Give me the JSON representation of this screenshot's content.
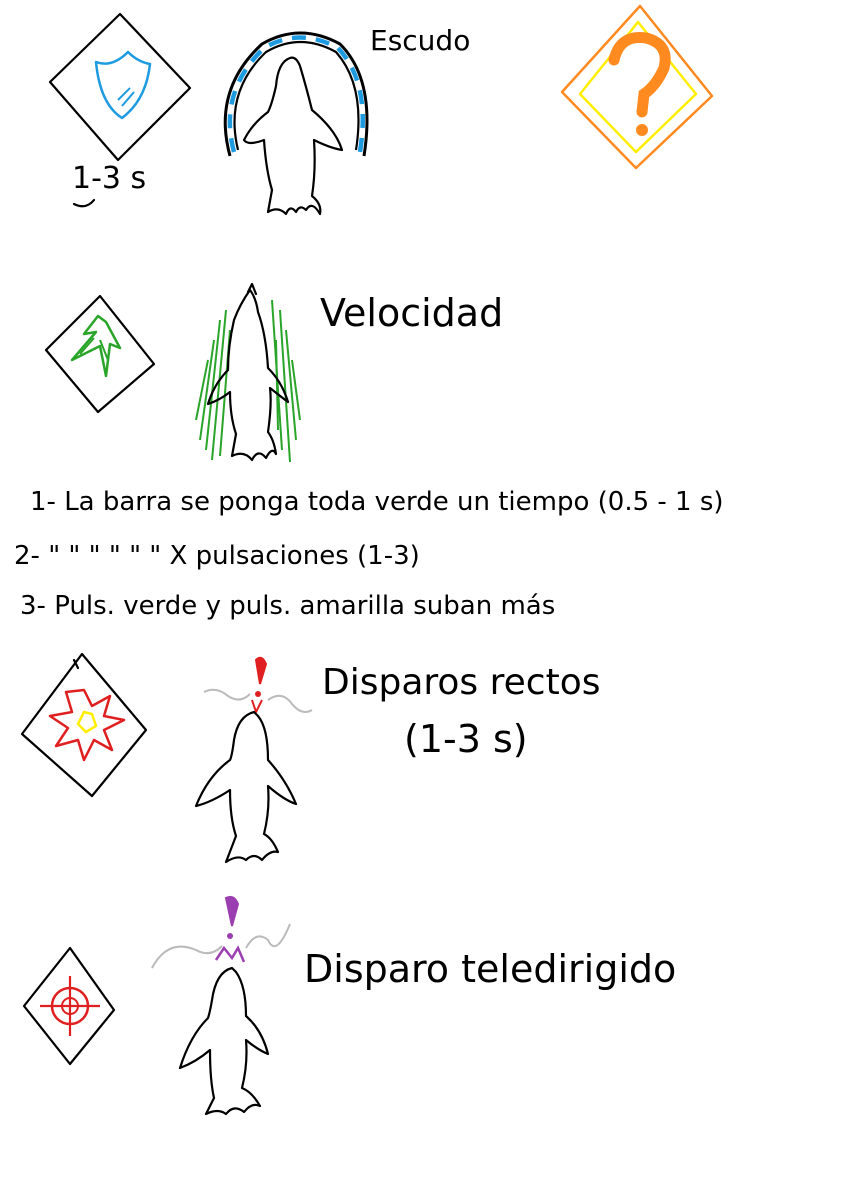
{
  "powerups": [
    {
      "name": "Escudo",
      "icon": "shield-icon",
      "icon_color": "#1e9be0",
      "duration": "1-3 s"
    },
    {
      "name": "Velocidad",
      "icon": "speed-arrows-icon",
      "icon_color": "#2aa52a",
      "notes": [
        "1- La barra se ponga toda verde un tiempo (0.5 - 1 s)",
        "2- \"  \"  \"  \"  \"  \"  X pulsaciones (1-3)",
        "3- Puls. verde y puls. amarilla suban más"
      ]
    },
    {
      "name": "Disparos rectos",
      "icon": "explosion-icon",
      "icon_color": "#e02020",
      "secondary_color": "#ffee00",
      "duration": "(1-3 s)"
    },
    {
      "name": "Disparo teledirigido",
      "icon": "crosshair-icon",
      "icon_color": "#e02020",
      "projectile_color": "#9b3fb0"
    }
  ],
  "mystery": {
    "icon": "question-mark-icon",
    "border_color": "#ff8a20",
    "inner_color": "#ffee00"
  }
}
